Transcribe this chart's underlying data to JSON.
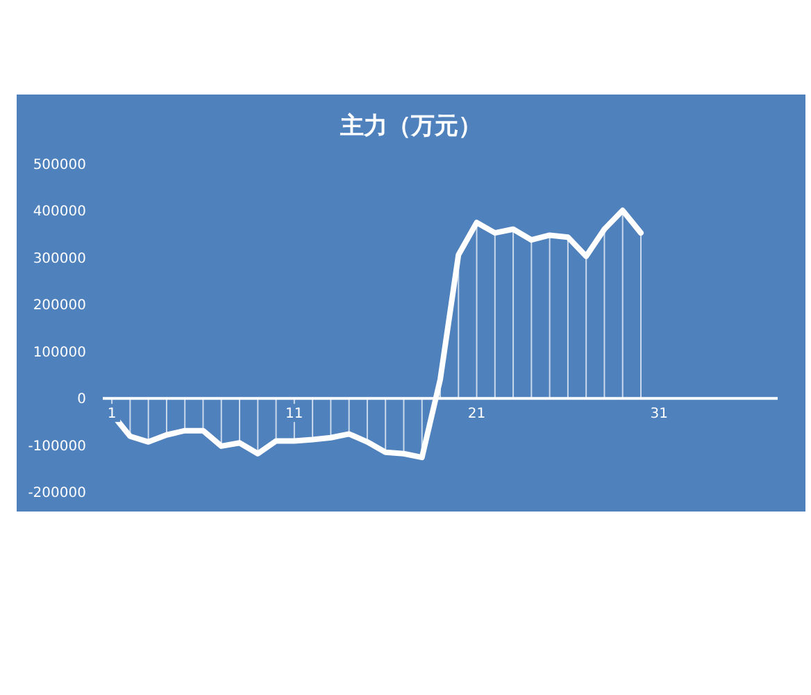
{
  "chart_data": {
    "type": "line",
    "title": "主力（万元）",
    "x": [
      1,
      2,
      3,
      4,
      5,
      6,
      7,
      8,
      9,
      10,
      11,
      12,
      13,
      14,
      15,
      16,
      17,
      18,
      19,
      20,
      21,
      22,
      23,
      24,
      25,
      26,
      27,
      28,
      29,
      30
    ],
    "series": [
      {
        "color": "#ffffff",
        "values": [
          -33000,
          -81000,
          -93000,
          -78000,
          -69000,
          -69000,
          -102000,
          -95000,
          -118000,
          -91000,
          -91000,
          -88000,
          -84000,
          -76000,
          -93000,
          -115000,
          -118000,
          -126000,
          40000,
          306000,
          375000,
          353000,
          361000,
          338000,
          348000,
          344000,
          303000,
          361000,
          401000,
          353000
        ]
      }
    ],
    "xlim": [
      0.5,
      37.5
    ],
    "xticks": [
      1,
      11,
      21,
      31
    ],
    "ylim": [
      -200000,
      500000
    ],
    "yticks": [
      -200000,
      -100000,
      0,
      100000,
      200000,
      300000,
      400000,
      500000
    ],
    "grid": false,
    "marker": "none",
    "line_style": "solid"
  }
}
